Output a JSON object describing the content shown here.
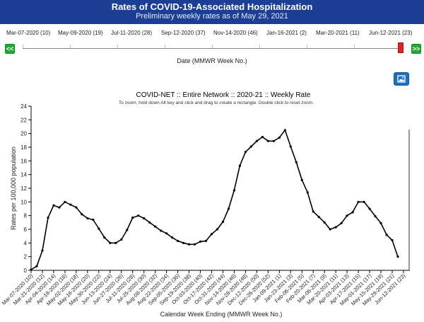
{
  "header": {
    "title": "Rates of COVID-19-Associated Hospitalization",
    "subtitle": "Preliminary weekly rates as of May 29, 2021"
  },
  "slider": {
    "prev_label": "<<",
    "next_label": ">>",
    "caption": "Date (MMWR Week No.)",
    "date_labels": [
      "Mar-07-2020 (10)",
      "May-09-2020 (19)",
      "Jul-11-2020 (28)",
      "Sep-12-2020 (37)",
      "Nov-14-2020 (46)",
      "Jan-16-2021 (2)",
      "Mar-20-2021 (11)",
      "Jun-12-2021 (23)"
    ]
  },
  "toolbar": {
    "export_icon": "image-icon",
    "accent_color": "#1f6fbf"
  },
  "chart_data": {
    "type": "line",
    "title": "COVID-NET :: Entire Network :: 2020-21 :: Weekly Rate",
    "subtitle": "To zoom, hold down Alt key and click and drag to create a rectangle. Double click to reset zoom.",
    "xlabel": "Calendar Week Ending (MMWR Week No.)",
    "ylabel": "Rates per 100,000 population",
    "ylim": [
      0,
      24
    ],
    "yticks": [
      0,
      2,
      4,
      6,
      8,
      10,
      12,
      14,
      16,
      18,
      20,
      22,
      24
    ],
    "grid": false,
    "x_tick_labels": [
      "Mar-07-2020 (10)",
      "Mar-21-2020 (12)",
      "Apr-04-2020 (14)",
      "Apr-18-2020 (16)",
      "May-02-2020 (18)",
      "May-16-2020 (20)",
      "May-30-2020 (22)",
      "Jun-13-2020 (24)",
      "Jun-27-2020 (26)",
      "Jul-11-2020 (28)",
      "Jul-25-2020 (30)",
      "Aug-08-2020 (32)",
      "Aug-22-2020 (34)",
      "Sep-05-2020 (36)",
      "Sep-19-2020 (38)",
      "Oct-03-2020 (40)",
      "Oct-17-2020 (42)",
      "Oct-31-2020 (44)",
      "Nov-14-2020 (46)",
      "Nov-28-2020 (48)",
      "Dec-12-2020 (50)",
      "Dec-26-2020 (52)",
      "Jan-09-2021 (1)",
      "Jan-23-2021 (3)",
      "Feb-06-2021 (5)",
      "Feb-20-2021 (7)",
      "Mar-06-2021 (9)",
      "Mar-20-2021 (11)",
      "Apr-03-2021 (13)",
      "Apr-17-2021 (15)",
      "May-01-2021 (17)",
      "May-15-2021 (19)",
      "May-29-2021 (21)",
      "Jun-12-2021 (23)"
    ],
    "series": [
      {
        "color": "#000000",
        "values": [
          0.1,
          0.6,
          2.9,
          7.7,
          9.5,
          9.2,
          10.0,
          9.6,
          9.2,
          8.2,
          7.6,
          7.4,
          6.1,
          4.8,
          4.0,
          4.0,
          4.5,
          5.9,
          7.7,
          8.0,
          7.6,
          7.0,
          6.4,
          5.8,
          5.4,
          4.8,
          4.3,
          4.0,
          3.8,
          3.8,
          4.2,
          4.3,
          5.3,
          6.0,
          7.1,
          9.0,
          11.7,
          15.3,
          17.3,
          18.1,
          18.9,
          19.5,
          18.9,
          18.9,
          19.4,
          20.5,
          18.1,
          15.8,
          13.2,
          11.4,
          8.6,
          7.8,
          7.0,
          6.0,
          6.3,
          6.9,
          8.0,
          8.5,
          10.0,
          10.0,
          9.0,
          7.9,
          6.9,
          5.2,
          4.4,
          2.0
        ]
      }
    ]
  }
}
